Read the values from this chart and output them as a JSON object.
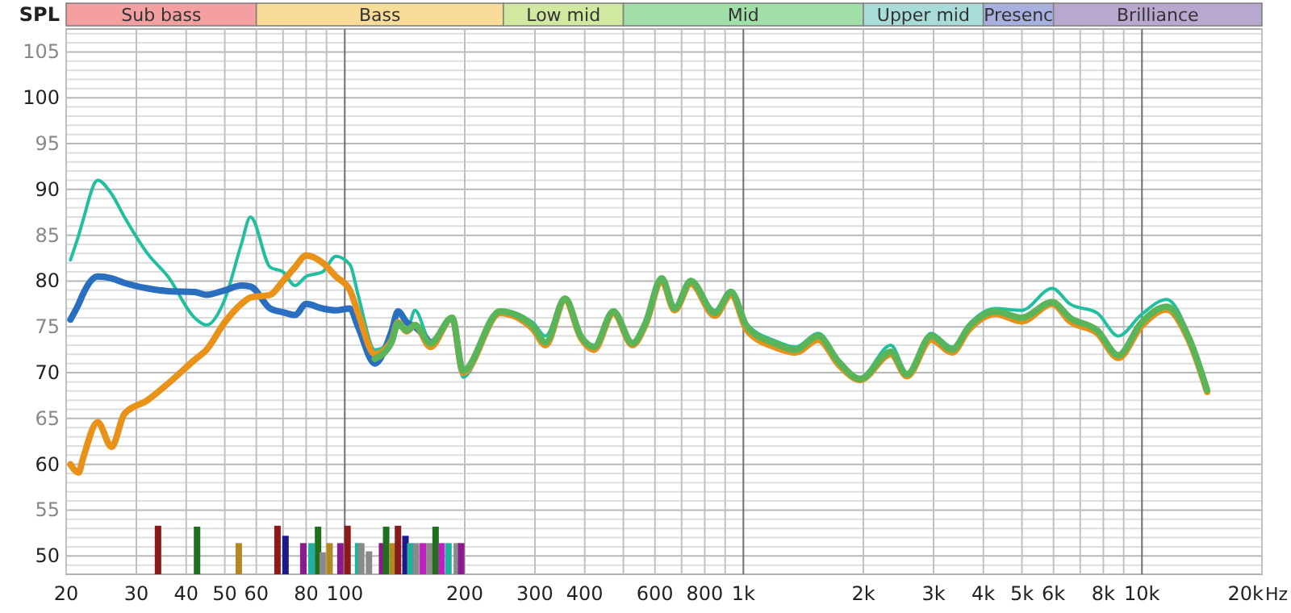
{
  "chart_data": {
    "type": "line",
    "ylabel": "SPL",
    "xlabel": "Hz",
    "log": "x",
    "grid": true,
    "marker": "none",
    "line_style": "solid",
    "xlim": [
      20,
      20000
    ],
    "ylim": [
      48,
      107.5
    ],
    "xticks": [
      20,
      30,
      40,
      50,
      60,
      {
        "value": 70,
        "label": null
      },
      80,
      {
        "value": 90,
        "label": null
      },
      100,
      200,
      300,
      400,
      {
        "value": 500,
        "label": null
      },
      600,
      {
        "value": 700,
        "label": null
      },
      800,
      {
        "value": 900,
        "label": null
      },
      {
        "value": 1000,
        "label": "1k"
      },
      {
        "value": 2000,
        "label": "2k"
      },
      {
        "value": 3000,
        "label": "3k"
      },
      {
        "value": 4000,
        "label": "4k"
      },
      {
        "value": 5000,
        "label": "5k"
      },
      {
        "value": 6000,
        "label": "6k"
      },
      {
        "value": 7000,
        "label": null
      },
      {
        "value": 8000,
        "label": "8k"
      },
      {
        "value": 9000,
        "label": null
      },
      {
        "value": 10000,
        "label": "10k"
      },
      {
        "value": 20000,
        "label": "20k"
      }
    ],
    "yticks": [
      50,
      55,
      60,
      65,
      70,
      75,
      80,
      85,
      90,
      95,
      100,
      105
    ],
    "bands": [
      {
        "axis": "x",
        "from": 20,
        "to": 60,
        "label": "Sub bass",
        "color": "#f4a0a0"
      },
      {
        "axis": "x",
        "from": 60,
        "to": 250,
        "label": "Bass",
        "color": "#f8dc98"
      },
      {
        "axis": "x",
        "from": 250,
        "to": 500,
        "label": "Low mid",
        "color": "#d0e8a0"
      },
      {
        "axis": "x",
        "from": 500,
        "to": 2000,
        "label": "Mid",
        "color": "#a0e0a8"
      },
      {
        "axis": "x",
        "from": 2000,
        "to": 4000,
        "label": "Upper mid",
        "color": "#a8dcd8"
      },
      {
        "axis": "x",
        "from": 4000,
        "to": 6000,
        "label": "Presenc",
        "color": "#a8b0e0"
      },
      {
        "axis": "x",
        "from": 6000,
        "to": 20000,
        "label": "Brilliance",
        "color": "#b8a8d0"
      }
    ],
    "x": [
      20.5,
      21.5,
      22,
      24,
      26,
      28,
      32,
      36,
      42,
      45,
      50,
      55,
      58,
      65,
      70,
      75,
      80,
      88,
      95,
      103,
      108,
      119,
      131,
      136,
      143,
      150,
      164,
      186,
      198,
      245,
      296,
      319,
      357,
      391,
      422,
      472,
      527,
      568,
      624,
      672,
      738,
      848,
      931,
      1022,
      1198,
      1352,
      1540,
      1739,
      1963,
      2344,
      2573,
      2958,
      3340,
      3666,
      4296,
      4988,
      5954,
      6596,
      7728,
      8722,
      9940,
      11538,
      13148,
      14568
    ],
    "series": [
      {
        "type": "bar",
        "x": [
          34,
          42.6,
          54.2,
          67.8,
          71,
          78.7,
          82.5,
          85.7,
          88,
          91.6,
          97.5,
          101.6,
          108,
          110,
          115,
          124,
          127,
          132,
          136,
          142,
          146,
          151,
          157,
          163,
          169,
          175,
          182,
          191,
          196
        ],
        "values": [
          53.3,
          53.2,
          51.4,
          53.3,
          52.2,
          51.4,
          51.4,
          53.2,
          50.4,
          51.4,
          51.4,
          53.3,
          51.4,
          51.4,
          50.5,
          51.4,
          53.2,
          51.4,
          53.3,
          52.2,
          51.4,
          51.4,
          51.4,
          51.4,
          53.2,
          51.4,
          51.4,
          51.4,
          51.4
        ],
        "colors": [
          "#8b1a1a",
          "#1f6f1f",
          "#b08a20",
          "#8b1a1a",
          "#1a1a8b",
          "#8b1a8b",
          "#20b0a0",
          "#1f6f1f",
          "#8a8a8a",
          "#b08a20",
          "#8b1a8b",
          "#8b1a1a",
          "#20b0a0",
          "#8a8a8a",
          "#8a8a8a",
          "#8b1a8b",
          "#1f6f1f",
          "#b08a20",
          "#8b1a1a",
          "#1a1a8b",
          "#20b0a0",
          "#8a8a8a",
          "#c020c0",
          "#8a8a8a",
          "#1f6f1f",
          "#c020c0",
          "#20b0a0",
          "#8a8a8a",
          "#8b1a8b"
        ]
      },
      {
        "color": "#1fbf9f",
        "values": [
          82.3,
          85.0,
          86.5,
          91.0,
          89.5,
          87.0,
          83.0,
          80.5,
          76.0,
          75.2,
          78.0,
          84.0,
          87.0,
          81.5,
          81.0,
          79.5,
          80.5,
          81.0,
          82.7,
          81.8,
          78.5,
          72.5,
          73.5,
          75.0,
          74.5,
          76.8,
          73.5,
          76.0,
          69.5,
          76.8,
          75.5,
          74.0,
          78.2,
          74.2,
          73.0,
          76.8,
          73.4,
          75.6,
          80.4,
          77.2,
          80.2,
          76.8,
          79.0,
          75.3,
          73.5,
          72.8,
          74.3,
          71.4,
          69.5,
          73.0,
          70.0,
          74.3,
          72.8,
          75.2,
          77.0,
          76.8,
          79.2,
          77.5,
          76.5,
          74.0,
          76.3,
          78.0,
          74.0,
          68.3
        ]
      },
      {
        "color": "#2a6fbf",
        "values": [
          75.8,
          77.5,
          78.5,
          80.5,
          80.3,
          79.8,
          79.2,
          78.9,
          78.8,
          78.5,
          79.0,
          79.5,
          79.4,
          77.0,
          76.6,
          76.3,
          77.5,
          77.0,
          76.8,
          77.0,
          75.0,
          71.0,
          74.5,
          76.7,
          75.5,
          75.0,
          73.2,
          null,
          null,
          null,
          null,
          null,
          null,
          null,
          null,
          null,
          null,
          null,
          null,
          null,
          null,
          null,
          null,
          null,
          null,
          null,
          null,
          null,
          null,
          null,
          null,
          null,
          null,
          null,
          null,
          null,
          null,
          null,
          null,
          null,
          null,
          null,
          null,
          null
        ]
      },
      {
        "color": "#e8921a",
        "values": [
          60.0,
          59.1,
          60.5,
          64.6,
          61.9,
          65.5,
          67.0,
          68.8,
          71.4,
          72.5,
          75.5,
          77.5,
          78.2,
          78.5,
          80.0,
          81.5,
          82.8,
          82.0,
          80.5,
          79.0,
          76.5,
          72.0,
          73.5,
          75.5,
          74.5,
          75.2,
          72.8,
          76.0,
          70.0,
          76.5,
          74.8,
          73.0,
          77.9,
          73.8,
          72.5,
          76.5,
          73.0,
          75.2,
          80.0,
          76.8,
          79.7,
          76.2,
          78.5,
          74.6,
          72.8,
          72.2,
          73.6,
          70.8,
          69.2,
          72.0,
          69.6,
          73.6,
          72.2,
          74.6,
          76.4,
          75.6,
          77.5,
          75.6,
          74.3,
          71.6,
          75.0,
          76.9,
          73.4,
          67.9
        ]
      },
      {
        "color": "#5ab55a",
        "values": [
          null,
          null,
          null,
          null,
          null,
          null,
          null,
          null,
          null,
          null,
          null,
          null,
          null,
          null,
          null,
          null,
          null,
          null,
          null,
          null,
          null,
          71.5,
          73.3,
          75.4,
          74.6,
          75.2,
          73.2,
          76.0,
          70.2,
          76.7,
          75.1,
          73.3,
          78.1,
          74.0,
          72.8,
          76.7,
          73.2,
          75.4,
          80.3,
          77.0,
          80.0,
          76.5,
          78.8,
          75.0,
          73.2,
          72.5,
          74.0,
          71.1,
          69.3,
          72.3,
          69.8,
          74.0,
          72.5,
          74.9,
          76.7,
          76.0,
          77.7,
          76.0,
          74.6,
          71.9,
          75.4,
          77.2,
          73.7,
          68.1
        ]
      }
    ]
  }
}
